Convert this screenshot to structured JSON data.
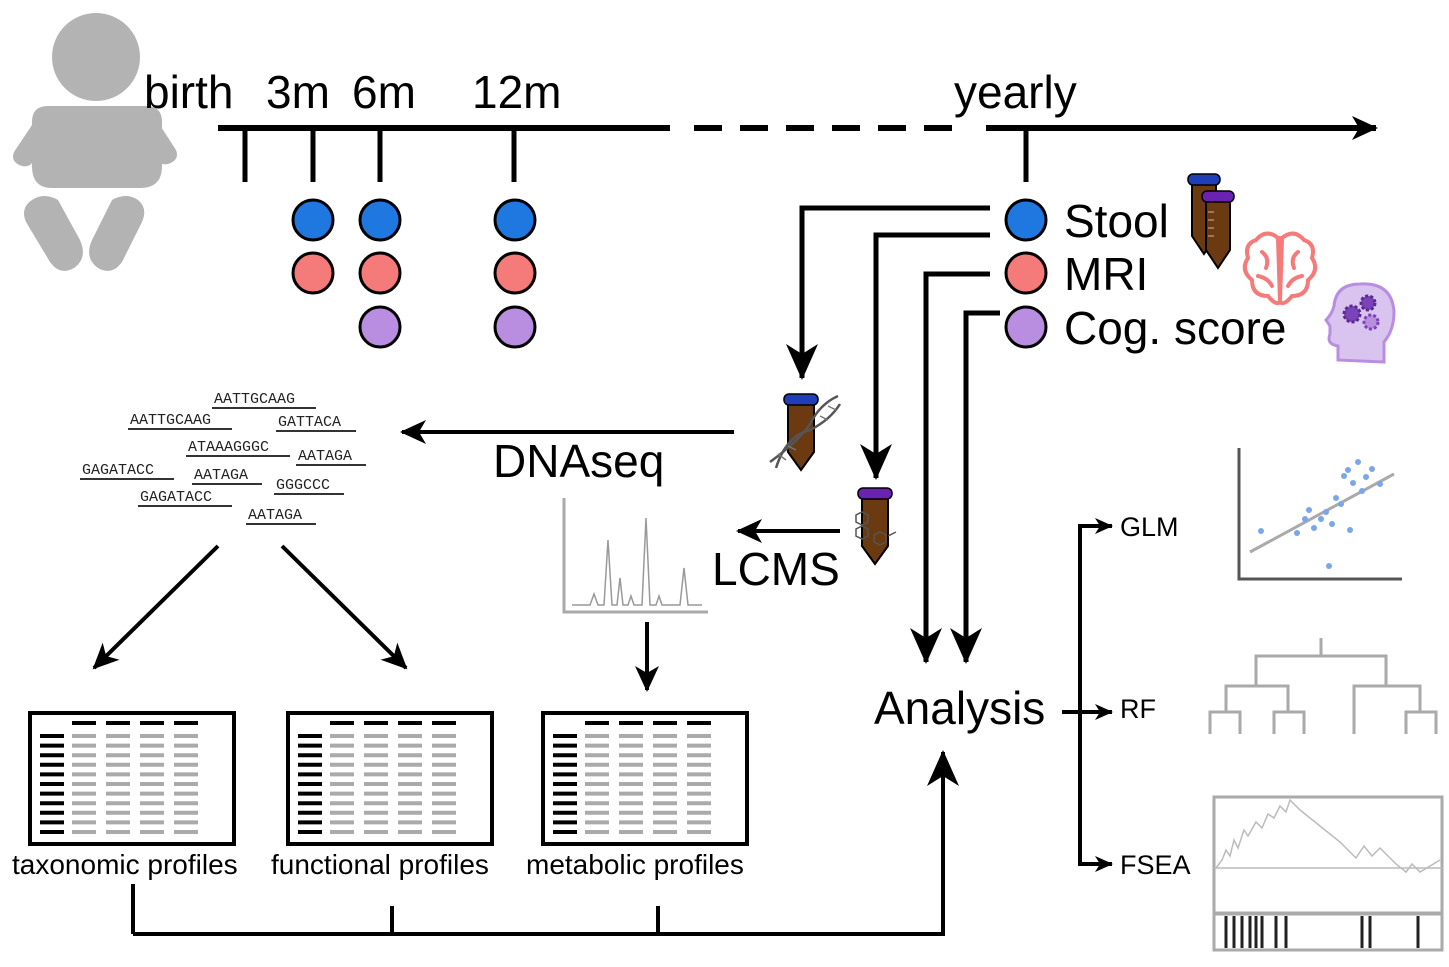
{
  "timeline": {
    "labels": [
      "birth",
      "3m",
      "6m",
      "12m",
      "yearly"
    ]
  },
  "legend": {
    "stool": {
      "label": "Stool",
      "color": "#1f77e0"
    },
    "mri": {
      "label": "MRI",
      "color": "#f57a7a"
    },
    "cog": {
      "label": "Cog. score",
      "color": "#b98ee0"
    }
  },
  "colors": {
    "line": "#000000",
    "gray": "#aaaaaa",
    "tube_body": "#6b3a10",
    "tube_cap_blue": "#1f3fb8",
    "tube_cap_purple": "#6a22b0",
    "scatter_dot": "#7aa6ea",
    "brain": "#f57a7a",
    "head": "#d9c4f0"
  },
  "sequences": [
    "AATTGCAAG",
    "AATTGCAAG",
    "GATTACA",
    "ATAAAGGGC",
    "AATAGA",
    "GAGATACC",
    "AATAGA",
    "GGGCCC",
    "GAGATACC",
    "AATAGA"
  ],
  "methods": {
    "dnaseq": "DNAseq",
    "lcms": "LCMS",
    "analysis": "Analysis",
    "glm": "GLM",
    "rf": "RF",
    "fsea": "FSEA"
  },
  "profiles": [
    "taxonomic profiles",
    "functional profiles",
    "metabolic profiles"
  ],
  "icons": [
    "baby-icon",
    "stool-tubes-icon",
    "brain-icon",
    "head-gears-icon",
    "dna-tube-icon",
    "metabolite-tube-icon",
    "chromatogram-icon",
    "table-icon",
    "scatter-plot-icon",
    "dendrogram-icon",
    "enrichment-plot-icon"
  ]
}
